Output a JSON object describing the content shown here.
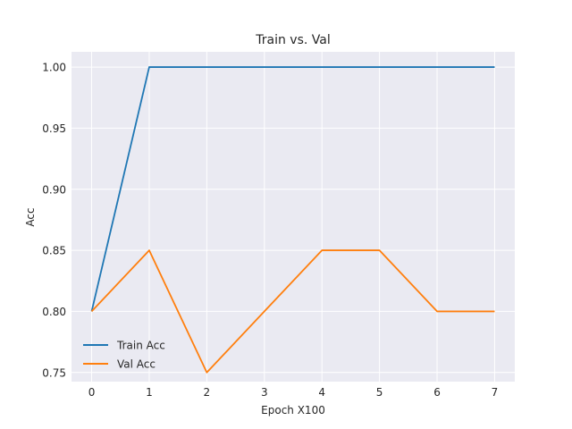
{
  "chart_data": {
    "type": "line",
    "title": "Train vs. Val",
    "xlabel": "Epoch X100",
    "ylabel": "Acc",
    "x": [
      0,
      1,
      2,
      3,
      4,
      5,
      6,
      7
    ],
    "xlim": [
      -0.35,
      7.35
    ],
    "ylim": [
      0.7425,
      1.0125
    ],
    "xticks": [
      "0",
      "1",
      "2",
      "3",
      "4",
      "5",
      "6",
      "7"
    ],
    "yticks": [
      "0.75",
      "0.80",
      "0.85",
      "0.90",
      "0.95",
      "1.00"
    ],
    "grid": true,
    "legend_position": "lower-left",
    "series": [
      {
        "name": "Train Acc",
        "color": "#1f77b4",
        "values": [
          0.8,
          1.0,
          1.0,
          1.0,
          1.0,
          1.0,
          1.0,
          1.0
        ]
      },
      {
        "name": "Val Acc",
        "color": "#ff7f0e",
        "values": [
          0.8,
          0.85,
          0.75,
          0.8,
          0.85,
          0.85,
          0.8,
          0.8
        ]
      }
    ],
    "background_color": "#eaeaf2",
    "grid_color": "#ffffff"
  }
}
